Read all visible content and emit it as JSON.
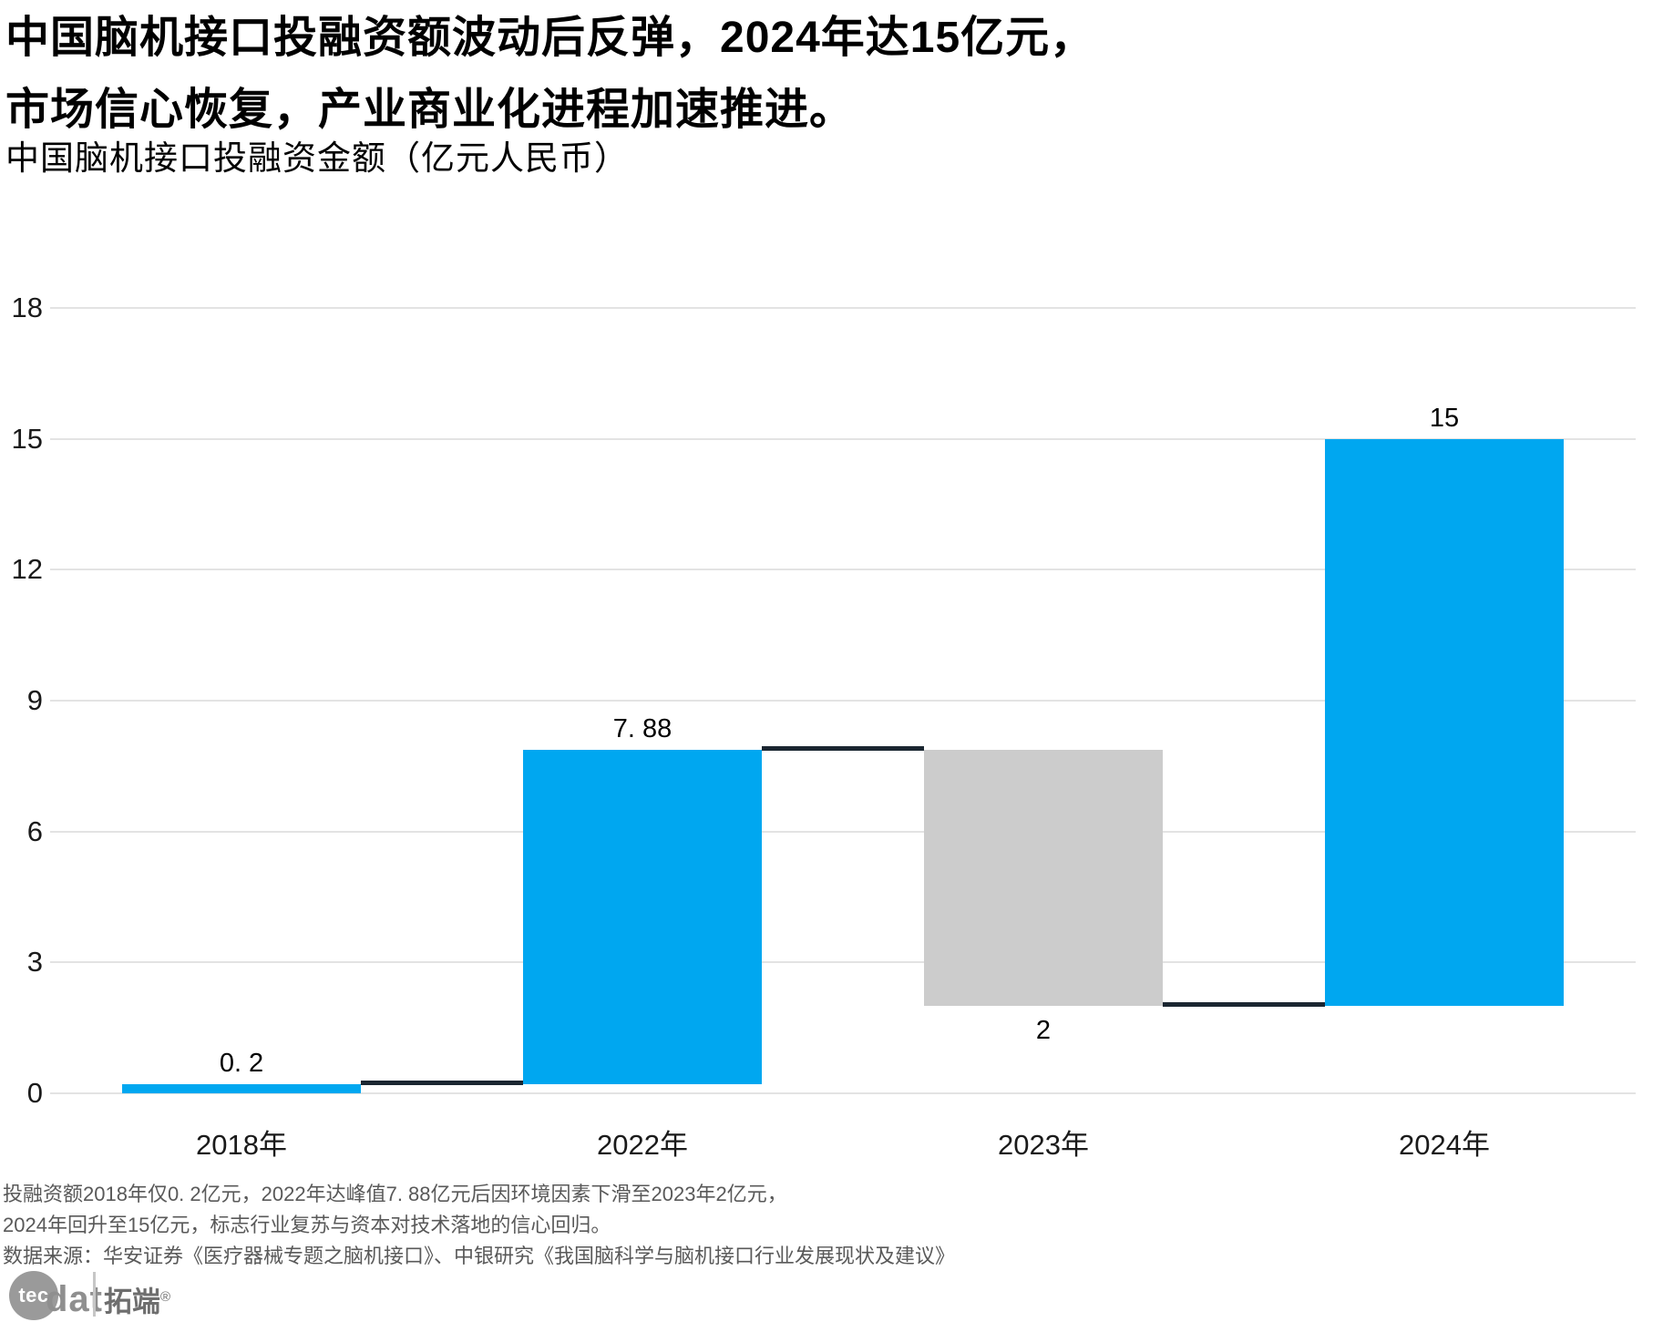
{
  "title": {
    "line1": "中国脑机接口投融资额波动后反弹，2024年达15亿元，",
    "line2": "市场信心恢复，产业商业化进程加速推进。"
  },
  "subtitle": "中国脑机接口投融资金额（亿元人民币）",
  "chart_data": {
    "type": "bar",
    "subtype": "waterfall",
    "title": "中国脑机接口投融资金额（亿元人民币）",
    "categories": [
      "2018年",
      "2022年",
      "2023年",
      "2024年"
    ],
    "values": [
      0.2,
      7.88,
      2,
      15
    ],
    "bar_segments": [
      {
        "category": "2018年",
        "from": 0,
        "to": 0.2,
        "color_key": "blue",
        "label": "0. 2",
        "label_position": "above"
      },
      {
        "category": "2022年",
        "from": 0.2,
        "to": 7.88,
        "color_key": "blue",
        "label": "7. 88",
        "label_position": "above"
      },
      {
        "category": "2023年",
        "from": 7.88,
        "to": 2,
        "color_key": "gray",
        "label": "2",
        "label_position": "below"
      },
      {
        "category": "2024年",
        "from": 2,
        "to": 15,
        "color_key": "blue",
        "label": "15",
        "label_position": "above"
      }
    ],
    "y_ticks": [
      0,
      3,
      6,
      9,
      12,
      15,
      18
    ],
    "ylim": [
      0,
      18
    ],
    "xlabel": "",
    "ylabel": "",
    "grid": "horizontal",
    "legend": "none",
    "colors": {
      "blue": "#00a7f0",
      "gray": "#cccccc",
      "connector": "#1b2631",
      "gridline": "#e3e3e3",
      "tick_text": "#1a1a1a",
      "value_label": "#000000",
      "background": "#ffffff"
    }
  },
  "footnote": {
    "line1": "投融资额2018年仅0. 2亿元，2022年达峰值7. 88亿元后因环境因素下滑至2023年2亿元，",
    "line2": "2024年回升至15亿元，标志行业复苏与资本对技术落地的信心回归。",
    "line3": "数据来源：华安证券《医疗器械专题之脑机接口》、中银研究《我国脑科学与脑机接口行业发展现状及建议》"
  },
  "logo": {
    "circle_text": "tec",
    "wordmark": "dat",
    "brand": "拓端",
    "registered": "®"
  }
}
